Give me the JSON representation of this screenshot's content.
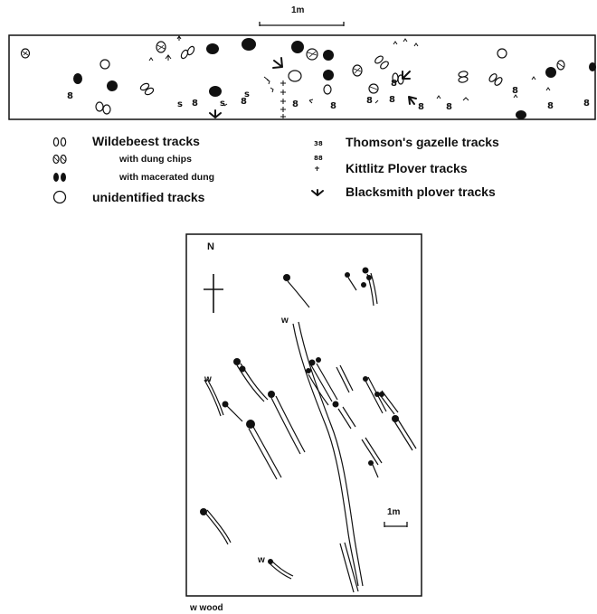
{
  "top_panel": {
    "scale_label": "1m"
  },
  "legend": {
    "wildebeest": "Wildebeest tracks",
    "dung_chips": "with dung chips",
    "macerated_dung": "with macerated dung",
    "unidentified": "unidentified tracks",
    "thomsons_gazelle": "Thomson's gazelle tracks",
    "kittlitz_plover": "Kittlitz Plover tracks",
    "blacksmith_plover": "Blacksmith plover tracks"
  },
  "map_panel": {
    "north_label": "N",
    "scale_label": "1m",
    "wood_marker": "w",
    "wood_key": "w  wood"
  },
  "colors": {
    "ink": "#111111",
    "background": "#ffffff"
  }
}
